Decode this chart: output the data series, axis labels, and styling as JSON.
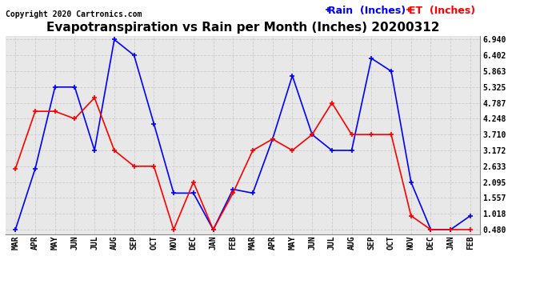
{
  "title": "Evapotranspiration vs Rain per Month (Inches) 20200312",
  "copyright": "Copyright 2020 Cartronics.com",
  "x_labels": [
    "MAR",
    "APR",
    "MAY",
    "JUN",
    "JUL",
    "AUG",
    "SEP",
    "OCT",
    "NOV",
    "DEC",
    "JAN",
    "FEB",
    "MAR",
    "APR",
    "MAY",
    "JUN",
    "JUL",
    "AUG",
    "SEP",
    "OCT",
    "NOV",
    "DEC",
    "JAN",
    "FEB"
  ],
  "rain_values": [
    0.48,
    2.55,
    5.325,
    5.325,
    3.172,
    6.94,
    6.402,
    4.08,
    1.72,
    1.72,
    0.48,
    1.85,
    1.72,
    3.557,
    5.71,
    3.71,
    3.172,
    3.172,
    6.3,
    5.863,
    2.095,
    0.48,
    0.48,
    0.95
  ],
  "et_values": [
    2.55,
    4.5,
    4.5,
    4.248,
    4.96,
    3.172,
    2.633,
    2.633,
    0.48,
    2.095,
    0.48,
    1.72,
    3.172,
    3.557,
    3.172,
    3.71,
    4.787,
    3.71,
    3.71,
    3.71,
    0.95,
    0.48,
    0.48,
    0.48
  ],
  "rain_color": "#0000ff",
  "et_color": "#ff0000",
  "legend_rain": "Rain  (Inches)",
  "legend_et": "ET  (Inches)",
  "yticks": [
    0.48,
    1.018,
    1.557,
    2.095,
    2.633,
    3.172,
    3.71,
    4.248,
    4.787,
    5.325,
    5.863,
    6.402,
    6.94
  ],
  "ymin": 0.48,
  "ymax": 6.94,
  "plot_bg": "#e8e8e8",
  "fig_bg": "#ffffff",
  "grid_color": "#cccccc",
  "title_fontsize": 11,
  "tick_fontsize": 7,
  "legend_fontsize": 9,
  "copyright_fontsize": 7
}
